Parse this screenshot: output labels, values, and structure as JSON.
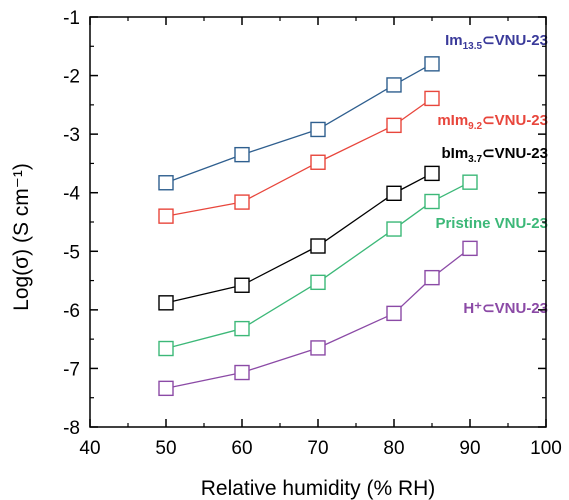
{
  "chart_data": {
    "type": "line",
    "xlabel": "Relative humidity (% RH)",
    "ylabel": "Log(σ) (S cm⁻¹)",
    "xlim": [
      40,
      100
    ],
    "ylim": [
      -8,
      -1
    ],
    "xticks": [
      "40",
      "50",
      "60",
      "70",
      "80",
      "90",
      "100"
    ],
    "yticks": [
      "-1",
      "-2",
      "-3",
      "-4",
      "-5",
      "-6",
      "-7",
      "-8"
    ],
    "xtick_values": [
      40,
      50,
      60,
      70,
      80,
      90,
      100
    ],
    "ytick_values": [
      -1,
      -2,
      -3,
      -4,
      -5,
      -6,
      -7,
      -8
    ],
    "grid": false,
    "marker": "open-square",
    "series": [
      {
        "label_parts": [
          "Im",
          "13.5",
          "⊂VNU-23"
        ],
        "color": "#2f5f8f",
        "label_color": "#3a3a9a",
        "x": [
          50,
          60,
          70,
          80,
          85
        ],
        "y": [
          -3.83,
          -3.35,
          -2.92,
          -2.16,
          -1.8
        ]
      },
      {
        "label_parts": [
          "mIm",
          "9.2",
          "⊂VNU-23"
        ],
        "color": "#e8463c",
        "label_color": "#e8463c",
        "x": [
          50,
          60,
          70,
          80,
          85
        ],
        "y": [
          -4.4,
          -4.16,
          -3.48,
          -2.85,
          -2.39
        ]
      },
      {
        "label_parts": [
          "bIm",
          "3.7",
          "⊂VNU-23"
        ],
        "color": "#000000",
        "label_color": "#000000",
        "x": [
          50,
          60,
          70,
          80,
          85
        ],
        "y": [
          -5.88,
          -5.58,
          -4.91,
          -4.01,
          -3.67
        ]
      },
      {
        "label_parts": [
          "Pristine VNU-23",
          "",
          ""
        ],
        "color": "#3cb878",
        "label_color": "#3cb878",
        "x": [
          50,
          60,
          70,
          80,
          85,
          90
        ],
        "y": [
          -6.66,
          -6.32,
          -5.53,
          -4.62,
          -4.15,
          -3.82
        ]
      },
      {
        "label_parts": [
          "H⁺⊂VNU-23",
          "",
          ""
        ],
        "color": "#8b4aa6",
        "label_color": "#8b4aa6",
        "x": [
          50,
          60,
          70,
          80,
          85,
          90
        ],
        "y": [
          -7.34,
          -7.07,
          -6.65,
          -6.06,
          -5.45,
          -4.95
        ]
      }
    ]
  }
}
